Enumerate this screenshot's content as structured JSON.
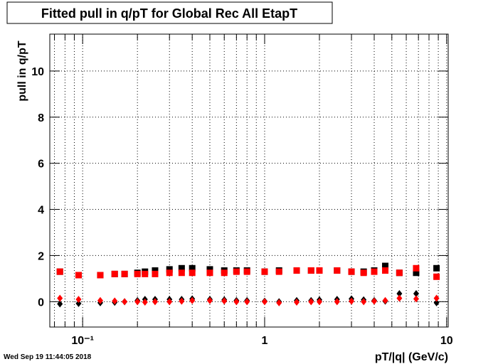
{
  "chart_data": {
    "type": "scatter",
    "title": "Fitted pull in q/pT for Global Rec All EtapT",
    "x_label": "pT/|q| (GeV/c)",
    "y_label": "pull in q/pT",
    "timestamp": "Wed Sep 19 11:44:05 2018",
    "xlog": true,
    "grid": true,
    "xlim": [
      0.066,
      10.2
    ],
    "ylim": [
      -1.1,
      11.6
    ],
    "xticks": [
      {
        "value": 0.1,
        "label": "10⁻¹"
      },
      1,
      10
    ],
    "xminorticks": [
      0.07,
      0.08,
      0.09,
      0.2,
      0.3,
      0.4,
      0.5,
      0.6,
      0.7,
      0.8,
      0.9,
      2,
      3,
      4,
      5,
      6,
      7,
      8,
      9
    ],
    "yticks": [
      0,
      2,
      4,
      6,
      8,
      10
    ],
    "x": [
      0.075,
      0.095,
      0.125,
      0.15,
      0.17,
      0.2,
      0.22,
      0.25,
      0.3,
      0.35,
      0.4,
      0.5,
      0.6,
      0.7,
      0.8,
      1.0,
      1.2,
      1.5,
      1.8,
      2.0,
      2.5,
      3.0,
      3.5,
      4.0,
      4.6,
      5.5,
      6.8,
      8.8
    ],
    "series": [
      {
        "marker": "square",
        "color": "#000000",
        "values": [
          1.3,
          1.15,
          1.15,
          1.2,
          1.2,
          1.25,
          1.3,
          1.35,
          1.4,
          1.45,
          1.45,
          1.4,
          1.35,
          1.35,
          1.35,
          1.3,
          1.35,
          1.35,
          1.35,
          1.35,
          1.35,
          1.3,
          1.3,
          1.35,
          1.55,
          1.25,
          1.25,
          1.45
        ]
      },
      {
        "marker": "square",
        "color": "#ff0000",
        "values": [
          1.3,
          1.15,
          1.15,
          1.2,
          1.2,
          1.2,
          1.2,
          1.2,
          1.25,
          1.25,
          1.25,
          1.25,
          1.25,
          1.3,
          1.3,
          1.3,
          1.3,
          1.35,
          1.35,
          1.35,
          1.35,
          1.3,
          1.25,
          1.3,
          1.35,
          1.25,
          1.45,
          1.08
        ]
      },
      {
        "marker": "diamond",
        "color": "#000000",
        "values": [
          -0.1,
          -0.08,
          -0.05,
          -0.03,
          0,
          0.05,
          0.1,
          0.1,
          0.1,
          0.1,
          0.12,
          0.1,
          0.08,
          0.05,
          0.05,
          0.02,
          0,
          0.05,
          0.05,
          0.08,
          0.1,
          0.12,
          0.08,
          0.05,
          0.02,
          0.35,
          0.35,
          -0.05
        ]
      },
      {
        "marker": "diamond",
        "color": "#ff0000",
        "values": [
          0.15,
          0.1,
          0.05,
          0.03,
          0,
          0,
          -0.02,
          0,
          0,
          0.02,
          0.05,
          0.05,
          0.03,
          0,
          0,
          0,
          -0.05,
          -0.02,
          0,
          0,
          0,
          0.02,
          0,
          0.02,
          0.05,
          0.15,
          0.12,
          0.15
        ]
      }
    ]
  }
}
